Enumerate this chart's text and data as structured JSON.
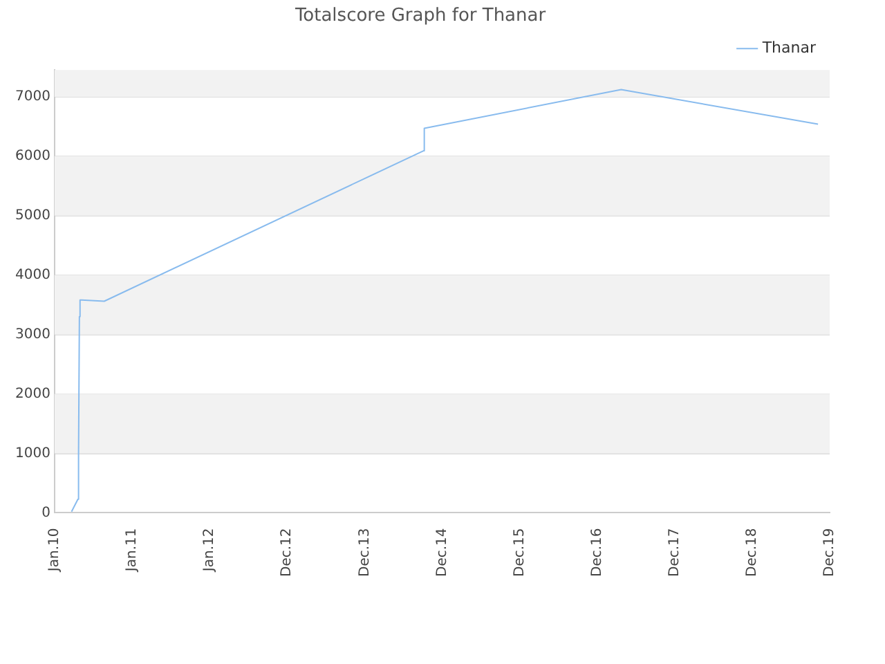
{
  "chart_data": {
    "type": "line",
    "title": "Totalscore Graph for Thanar",
    "x": [
      "2010-03-22",
      "2010-04-21",
      "2010-04-24",
      "2010-04-28",
      "2010-05-01",
      "2010-05-09",
      "2010-08-23",
      "2014-10-04",
      "2014-10-08",
      "2017-04-22",
      "2019-11-05"
    ],
    "series": [
      {
        "name": "Thanar",
        "color": "#88bbee",
        "values": [
          20,
          230,
          980,
          3300,
          3580,
          3580,
          3560,
          6090,
          6470,
          7120,
          6540
        ]
      }
    ],
    "xlim": [
      "2010-01-01",
      "2019-12-30"
    ],
    "xticks": [
      {
        "value": "2010-01-01",
        "label": "Jan.10"
      },
      {
        "value": "2011-01-01",
        "label": "Jan.11"
      },
      {
        "value": "2012-01-01",
        "label": "Jan.12"
      },
      {
        "value": "2012-12-31",
        "label": "Dec.12"
      },
      {
        "value": "2013-12-31",
        "label": "Dec.13"
      },
      {
        "value": "2014-12-31",
        "label": "Dec.14"
      },
      {
        "value": "2015-12-31",
        "label": "Dec.15"
      },
      {
        "value": "2016-12-30",
        "label": "Dec.16"
      },
      {
        "value": "2017-12-30",
        "label": "Dec.17"
      },
      {
        "value": "2018-12-30",
        "label": "Dec.18"
      },
      {
        "value": "2019-12-30",
        "label": "Dec.19"
      }
    ],
    "ylim": [
      0,
      7450
    ],
    "yticks": [
      0,
      1000,
      2000,
      3000,
      4000,
      5000,
      6000,
      7000
    ],
    "grid": "y",
    "legend": "top right",
    "marker": "none",
    "line_style": "solid"
  }
}
